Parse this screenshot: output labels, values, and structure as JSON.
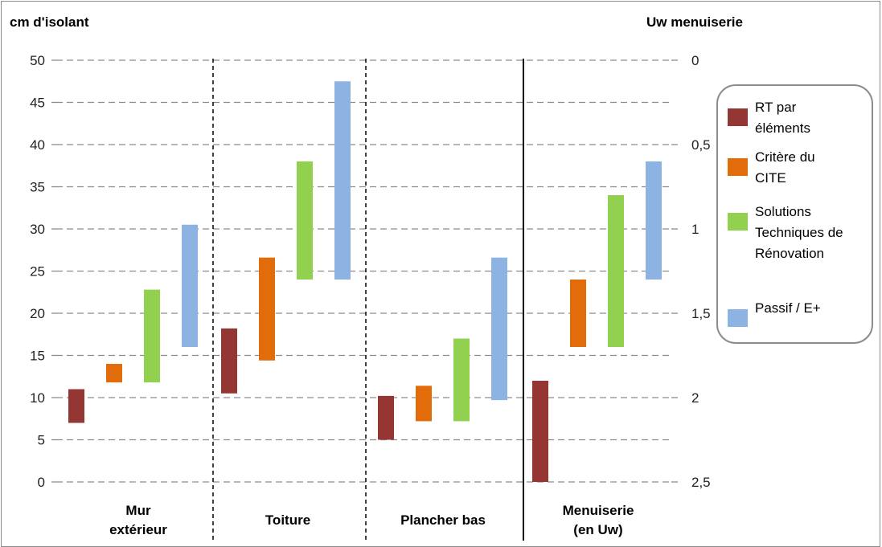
{
  "chart_data": {
    "type": "bar",
    "subtype": "floating-range",
    "y_axis_left": {
      "label": "cm d'isolant",
      "ticks": [
        "0",
        "5",
        "10",
        "15",
        "20",
        "25",
        "30",
        "35",
        "40",
        "45",
        "50"
      ],
      "range": [
        0,
        50
      ]
    },
    "y_axis_right": {
      "label": "Uw menuiserie",
      "ticks": [
        "0",
        "0,5",
        "1",
        "1,5",
        "2",
        "2,5"
      ],
      "range": [
        0,
        2.5
      ],
      "reversed": true
    },
    "categories": [
      {
        "name": "Mur extérieur",
        "lines": [
          "Mur",
          "extérieur"
        ]
      },
      {
        "name": "Toiture",
        "lines": [
          "Toiture"
        ]
      },
      {
        "name": "Plancher bas",
        "lines": [
          "Plancher bas"
        ]
      },
      {
        "name": "Menuiserie (en Uw)",
        "lines": [
          "Menuiserie",
          "(en Uw)"
        ]
      }
    ],
    "series": [
      {
        "name": "RT par éléments",
        "label_lines": [
          "RT par",
          "éléments"
        ],
        "color": "#943634",
        "ranges": [
          [
            7,
            11
          ],
          [
            10.5,
            18.2
          ],
          [
            5,
            10.2
          ],
          [
            1.9,
            2.5
          ]
        ]
      },
      {
        "name": "Critère du CITE",
        "label_lines": [
          "Critère du",
          "CITE"
        ],
        "color": "#e36c0a",
        "ranges": [
          [
            11.8,
            14
          ],
          [
            14.4,
            26.6
          ],
          [
            7.2,
            11.4
          ],
          [
            1.3,
            1.7
          ]
        ]
      },
      {
        "name": "Solutions Techniques de Rénovation",
        "label_lines": [
          "Solutions",
          "Techniques de",
          "Rénovation"
        ],
        "color": "#92d050",
        "ranges": [
          [
            11.8,
            22.8
          ],
          [
            24,
            38
          ],
          [
            7.2,
            17
          ],
          [
            0.8,
            1.7
          ]
        ]
      },
      {
        "name": "Passif / E+",
        "label_lines": [
          "Passif / E+"
        ],
        "color": "#8db3e2",
        "ranges": [
          [
            16,
            30.5
          ],
          [
            24,
            47.5
          ],
          [
            9.7,
            26.6
          ],
          [
            0.6,
            1.3
          ]
        ]
      }
    ],
    "menuiserie_axis": "right",
    "grid": true,
    "legend_position": "right"
  }
}
